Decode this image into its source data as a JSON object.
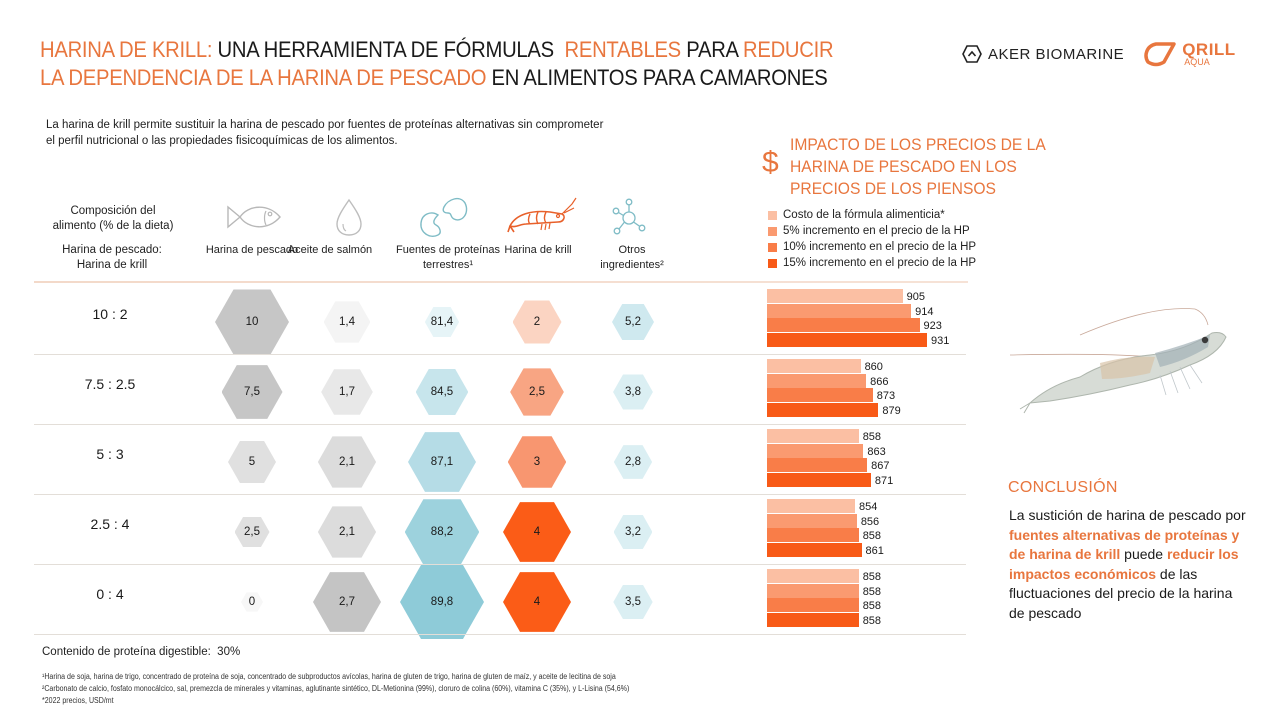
{
  "header": {
    "title_parts": [
      {
        "text": "HARINA DE KRILL:",
        "accent": true
      },
      {
        "text": " UNA HERRAMIENTA DE FÓRMULAS  ",
        "accent": false
      },
      {
        "text": "RENTABLES",
        "accent": true
      },
      {
        "text": " PARA ",
        "accent": false
      },
      {
        "text": "REDUCIR",
        "accent": true
      }
    ],
    "title_line2_parts": [
      {
        "text": "LA DEPENDENCIA DE LA HARINA DE PESCADO",
        "accent": true
      },
      {
        "text": " EN ALIMENTOS PARA CAMARONES",
        "accent": false
      }
    ],
    "logo_aker": "AKER BIOMARINE",
    "logo_qrill": "QRILL",
    "logo_qrill_sub": "AQUA"
  },
  "intro": "La harina de krill permite sustituir la harina de pescado por fuentes de proteínas alternativas sin comprometer el perfil nutricional o las propiedades fisicoquímicas de los alimentos.",
  "table": {
    "header_label_1": "Composición del alimento (% de la dieta)",
    "header_label_2": "Harina de pescado: Harina de krill",
    "columns": [
      {
        "label": "Harina de pescado",
        "icon": "fish-icon",
        "color": "#c8c8c8"
      },
      {
        "label": "Aceite de salmón",
        "icon": "oil-drop-icon",
        "color": "#dcdcdc"
      },
      {
        "label": "Fuentes de proteínas terrestres¹",
        "icon": "beans-icon",
        "color": "#8ecbd8"
      },
      {
        "label": "Harina de krill",
        "icon": "shrimp-icon",
        "color": "#fb5c17"
      },
      {
        "label": "Otros ingredientes²",
        "icon": "molecule-icon",
        "color": "#d3ebf0"
      }
    ],
    "rows": [
      {
        "ratio": "10 : 2",
        "values": [
          "10",
          "1,4",
          "81,4",
          "2",
          "5,2"
        ]
      },
      {
        "ratio": "7.5 : 2.5",
        "values": [
          "7,5",
          "1,7",
          "84,5",
          "2,5",
          "3,8"
        ]
      },
      {
        "ratio": "5 : 3",
        "values": [
          "5",
          "2,1",
          "87,1",
          "3",
          "2,8"
        ]
      },
      {
        "ratio": "2.5 : 4",
        "values": [
          "2,5",
          "2,1",
          "88,2",
          "4",
          "3,2"
        ]
      },
      {
        "ratio": "0 : 4",
        "values": [
          "0",
          "2,7",
          "89,8",
          "4",
          "3,5"
        ]
      }
    ]
  },
  "impact": {
    "icon": "dollar-icon",
    "title_lines": [
      "IMPACTO DE LOS PRECIOS DE LA",
      "HARINA DE PESCADO EN LOS",
      "PRECIOS DE LOS PIENSOS"
    ],
    "legend": [
      {
        "label": "Costo de la fórmula alimenticia*",
        "color": "#fbbfa3"
      },
      {
        "label": "5% incremento en el precio de la HP",
        "color": "#fa9a70"
      },
      {
        "label": "10% incremento en el precio de la HP",
        "color": "#f97d48"
      },
      {
        "label": "15% incremento en el precio de la HP",
        "color": "#f85a17"
      }
    ]
  },
  "chart_data": {
    "type": "bar",
    "orientation": "horizontal",
    "title": "IMPACTO DE LOS PRECIOS DE LA HARINA DE PESCADO EN LOS PRECIOS DE LOS PIENSOS",
    "categories": [
      "10 : 2",
      "7.5 : 2.5",
      "5 : 3",
      "2.5 : 4",
      "0 : 4"
    ],
    "series": [
      {
        "name": "Costo de la fórmula alimenticia*",
        "values": [
          905,
          860,
          858,
          854,
          858
        ]
      },
      {
        "name": "5% incremento en el precio de la HP",
        "values": [
          914,
          866,
          863,
          856,
          858
        ]
      },
      {
        "name": "10% incremento en el precio de la HP",
        "values": [
          923,
          873,
          867,
          858,
          858
        ]
      },
      {
        "name": "15% incremento en el precio de la HP",
        "values": [
          931,
          879,
          871,
          861,
          858
        ]
      }
    ],
    "unit": "USD/mt",
    "legend_position": "top",
    "grid": false
  },
  "conclusion": {
    "title": "CONCLUSIÓN",
    "parts": [
      {
        "text": "La sustición de harina de pescado por ",
        "accent": false
      },
      {
        "text": "fuentes alternativas de proteínas y de harina de krill",
        "accent": true
      },
      {
        "text": " puede ",
        "accent": false
      },
      {
        "text": "reducir los impactos económicos",
        "accent": true
      },
      {
        "text": "  de las fluctuaciones del precio de la harina de pescado",
        "accent": false
      }
    ]
  },
  "footer": {
    "protein": "Contenido de proteína digestible:  30%",
    "footnotes": [
      "¹Harina de soja, harina de trigo, concentrado de proteína de soja, concentrado de subproductos avícolas, harina de gluten de trigo, harina de gluten de maíz, y aceite de lecitina de soja",
      "²Carbonato de calcio,  fosfato monocálcico,  sal,  premezcla de minerales y vitaminas, aglutinante sintético, DL-Metionina (99%),  cloruro de colina (60%),  vitamina C (35%),  y L-Lisina (54,6%)",
      "*2022 precios, USD/mt"
    ]
  }
}
